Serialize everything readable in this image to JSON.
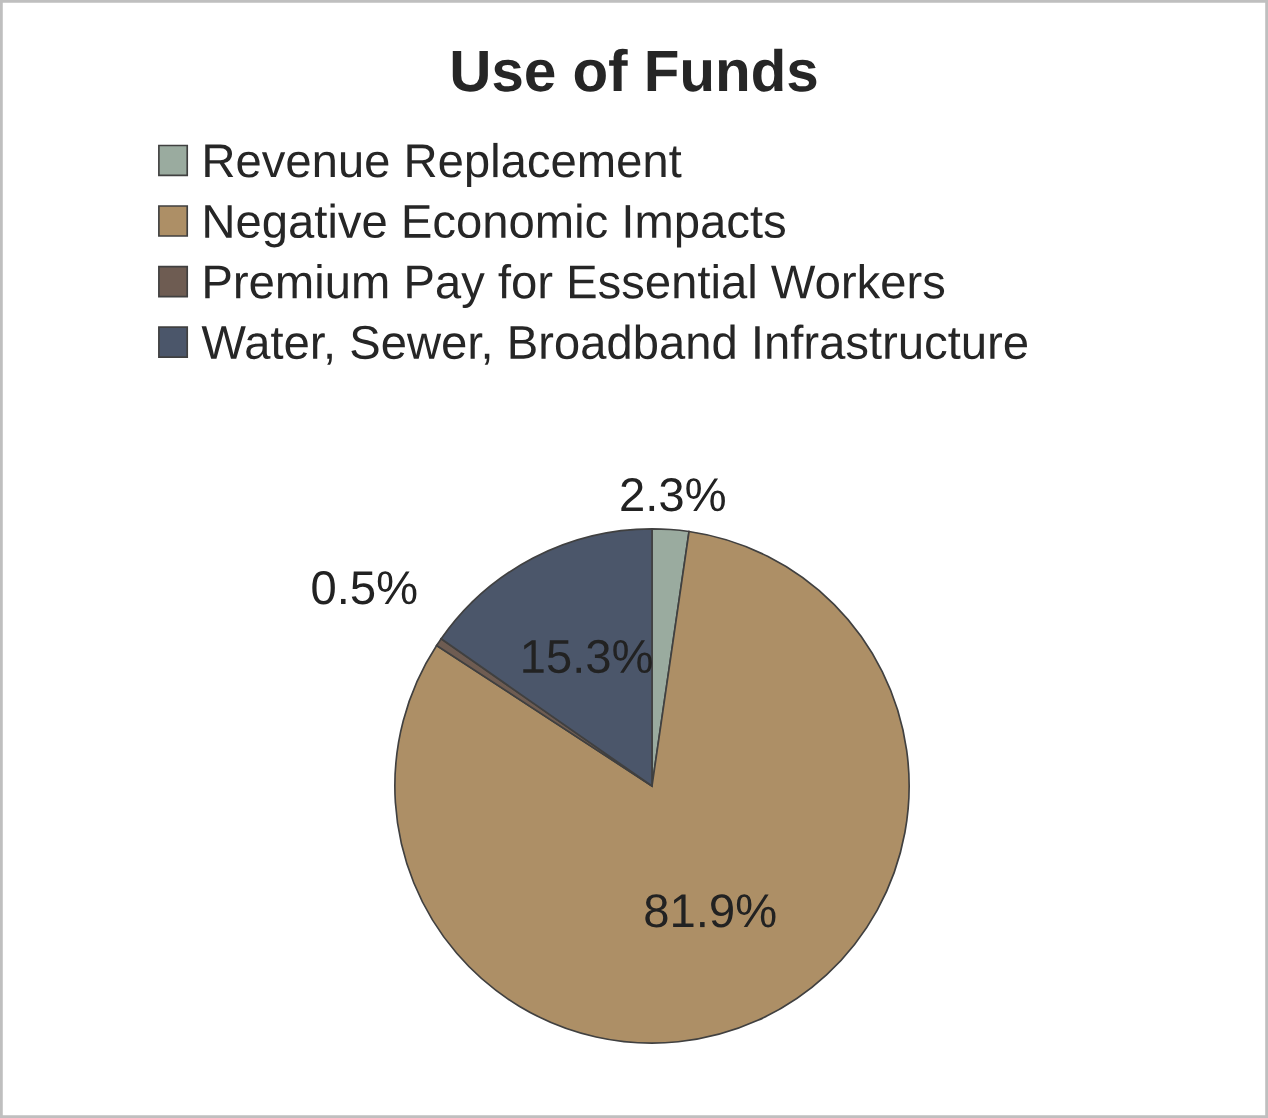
{
  "chart_data": {
    "type": "pie",
    "title": "Use of Funds",
    "categories": [
      "Revenue Replacement",
      "Negative Economic Impacts",
      "Premium Pay for Essential Workers",
      "Water, Sewer, Broadband Infrastructure"
    ],
    "values": [
      2.3,
      81.9,
      0.5,
      15.3
    ],
    "colors": [
      "#9aab9f",
      "#ad8f66",
      "#6e5c52",
      "#4b566a"
    ],
    "value_labels": [
      "2.3%",
      "81.9%",
      "0.5%",
      "15.3%"
    ],
    "legend": "top"
  }
}
